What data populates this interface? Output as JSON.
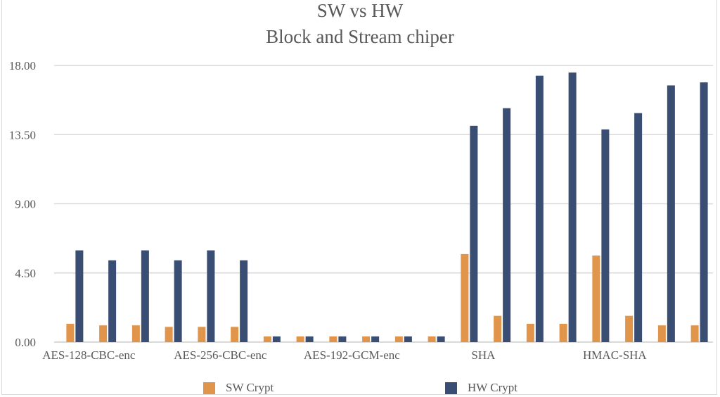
{
  "chart_data": {
    "type": "bar",
    "title": "SW vs HW\nBlock and Stream chiper",
    "title_lines": [
      "SW vs HW",
      "Block and Stream chiper"
    ],
    "xlabel": "",
    "ylabel": "",
    "ylim": [
      0,
      18
    ],
    "y_ticks": [
      "0.00",
      "4.50",
      "9.00",
      "13.50",
      "18.00"
    ],
    "y_tick_values": [
      0,
      4.5,
      9,
      13.5,
      18
    ],
    "grid": true,
    "legend_position": "bottom",
    "categories": [
      "AES-128-CBC-enc",
      "",
      "",
      "",
      "AES-256-CBC-enc",
      "",
      "",
      "",
      "AES-192-GCM-enc",
      "",
      "",
      "",
      "SHA",
      "",
      "",
      "",
      "HMAC-SHA",
      "",
      "",
      ""
    ],
    "series": [
      {
        "name": "SW Crypt",
        "color": "#E0954B",
        "values": [
          1.19,
          1.09,
          1.09,
          0.99,
          0.99,
          0.99,
          0.37,
          0.37,
          0.37,
          0.37,
          0.37,
          0.37,
          5.73,
          1.71,
          1.19,
          1.19,
          5.63,
          1.71,
          1.09,
          1.09
        ]
      },
      {
        "name": "HW Crypt",
        "color": "#3A4E73",
        "values": [
          5.97,
          5.32,
          5.97,
          5.32,
          5.97,
          5.32,
          0.37,
          0.37,
          0.37,
          0.37,
          0.37,
          0.37,
          14.07,
          15.22,
          17.33,
          17.54,
          13.84,
          14.9,
          16.7,
          16.9
        ]
      }
    ]
  },
  "legend": {
    "sw_label": "SW Crypt",
    "hw_label": "HW Crypt"
  }
}
